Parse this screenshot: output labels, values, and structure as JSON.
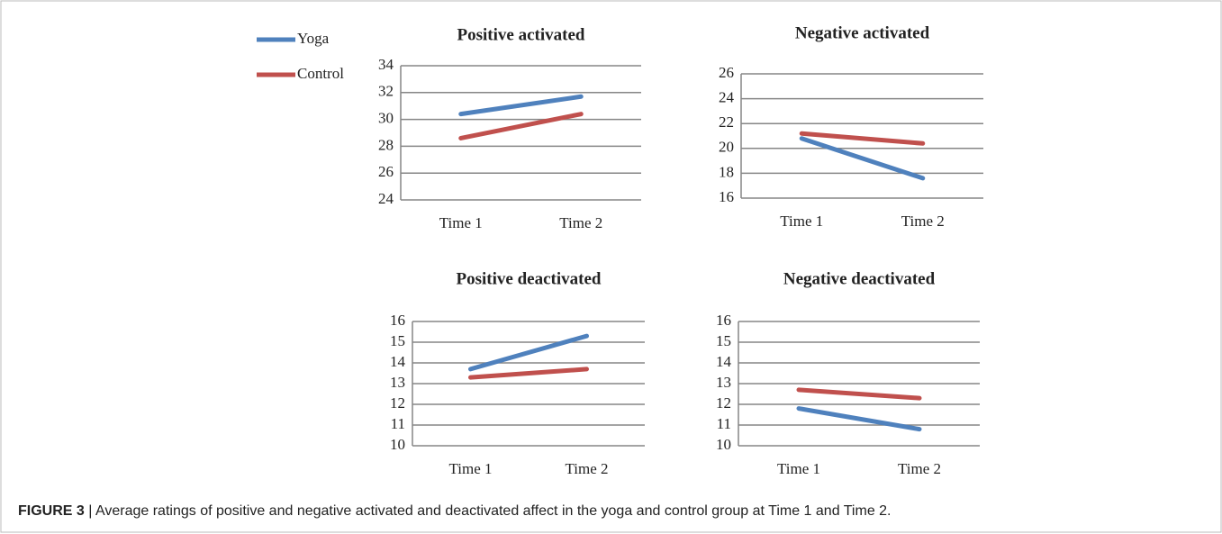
{
  "chart_data": [
    {
      "type": "line",
      "title": "Positive activated",
      "categories": [
        "Time 1",
        "Time 2"
      ],
      "series": [
        {
          "name": "Yoga",
          "color": "#4f81bd",
          "values": [
            30.4,
            31.7
          ]
        },
        {
          "name": "Control",
          "color": "#c0504d",
          "values": [
            28.6,
            30.4
          ]
        }
      ],
      "ylim": [
        24,
        34
      ],
      "yticks": [
        24,
        26,
        28,
        30,
        32,
        34
      ],
      "grid": true
    },
    {
      "type": "line",
      "title": "Negative activated",
      "categories": [
        "Time 1",
        "Time 2"
      ],
      "series": [
        {
          "color": "#4f81bd",
          "values": [
            20.8,
            17.6
          ]
        },
        {
          "color": "#c0504d",
          "values": [
            21.2,
            20.4
          ]
        }
      ],
      "ylim": [
        16,
        26
      ],
      "yticks": [
        16,
        18,
        20,
        22,
        24,
        26
      ],
      "grid": true
    },
    {
      "type": "line",
      "title": "Positive deactivated",
      "categories": [
        "Time 1",
        "Time 2"
      ],
      "series": [
        {
          "color": "#4f81bd",
          "values": [
            13.7,
            15.3
          ]
        },
        {
          "color": "#c0504d",
          "values": [
            13.3,
            13.7
          ]
        }
      ],
      "ylim": [
        10,
        16
      ],
      "yticks": [
        10,
        11,
        12,
        13,
        14,
        15,
        16
      ],
      "grid": true
    },
    {
      "type": "line",
      "title": "Negative deactivated",
      "categories": [
        "Time 1",
        "Time 2"
      ],
      "series": [
        {
          "color": "#4f81bd",
          "values": [
            11.8,
            10.8
          ]
        },
        {
          "color": "#c0504d",
          "values": [
            12.7,
            12.3
          ]
        }
      ],
      "ylim": [
        10,
        16
      ],
      "yticks": [
        10,
        11,
        12,
        13,
        14,
        15,
        16
      ],
      "grid": true
    }
  ],
  "caption": {
    "label": "FIGURE 3",
    "text": "| Average ratings of positive and negative activated and deactivated affect in the yoga and control group at Time 1 and Time 2."
  }
}
